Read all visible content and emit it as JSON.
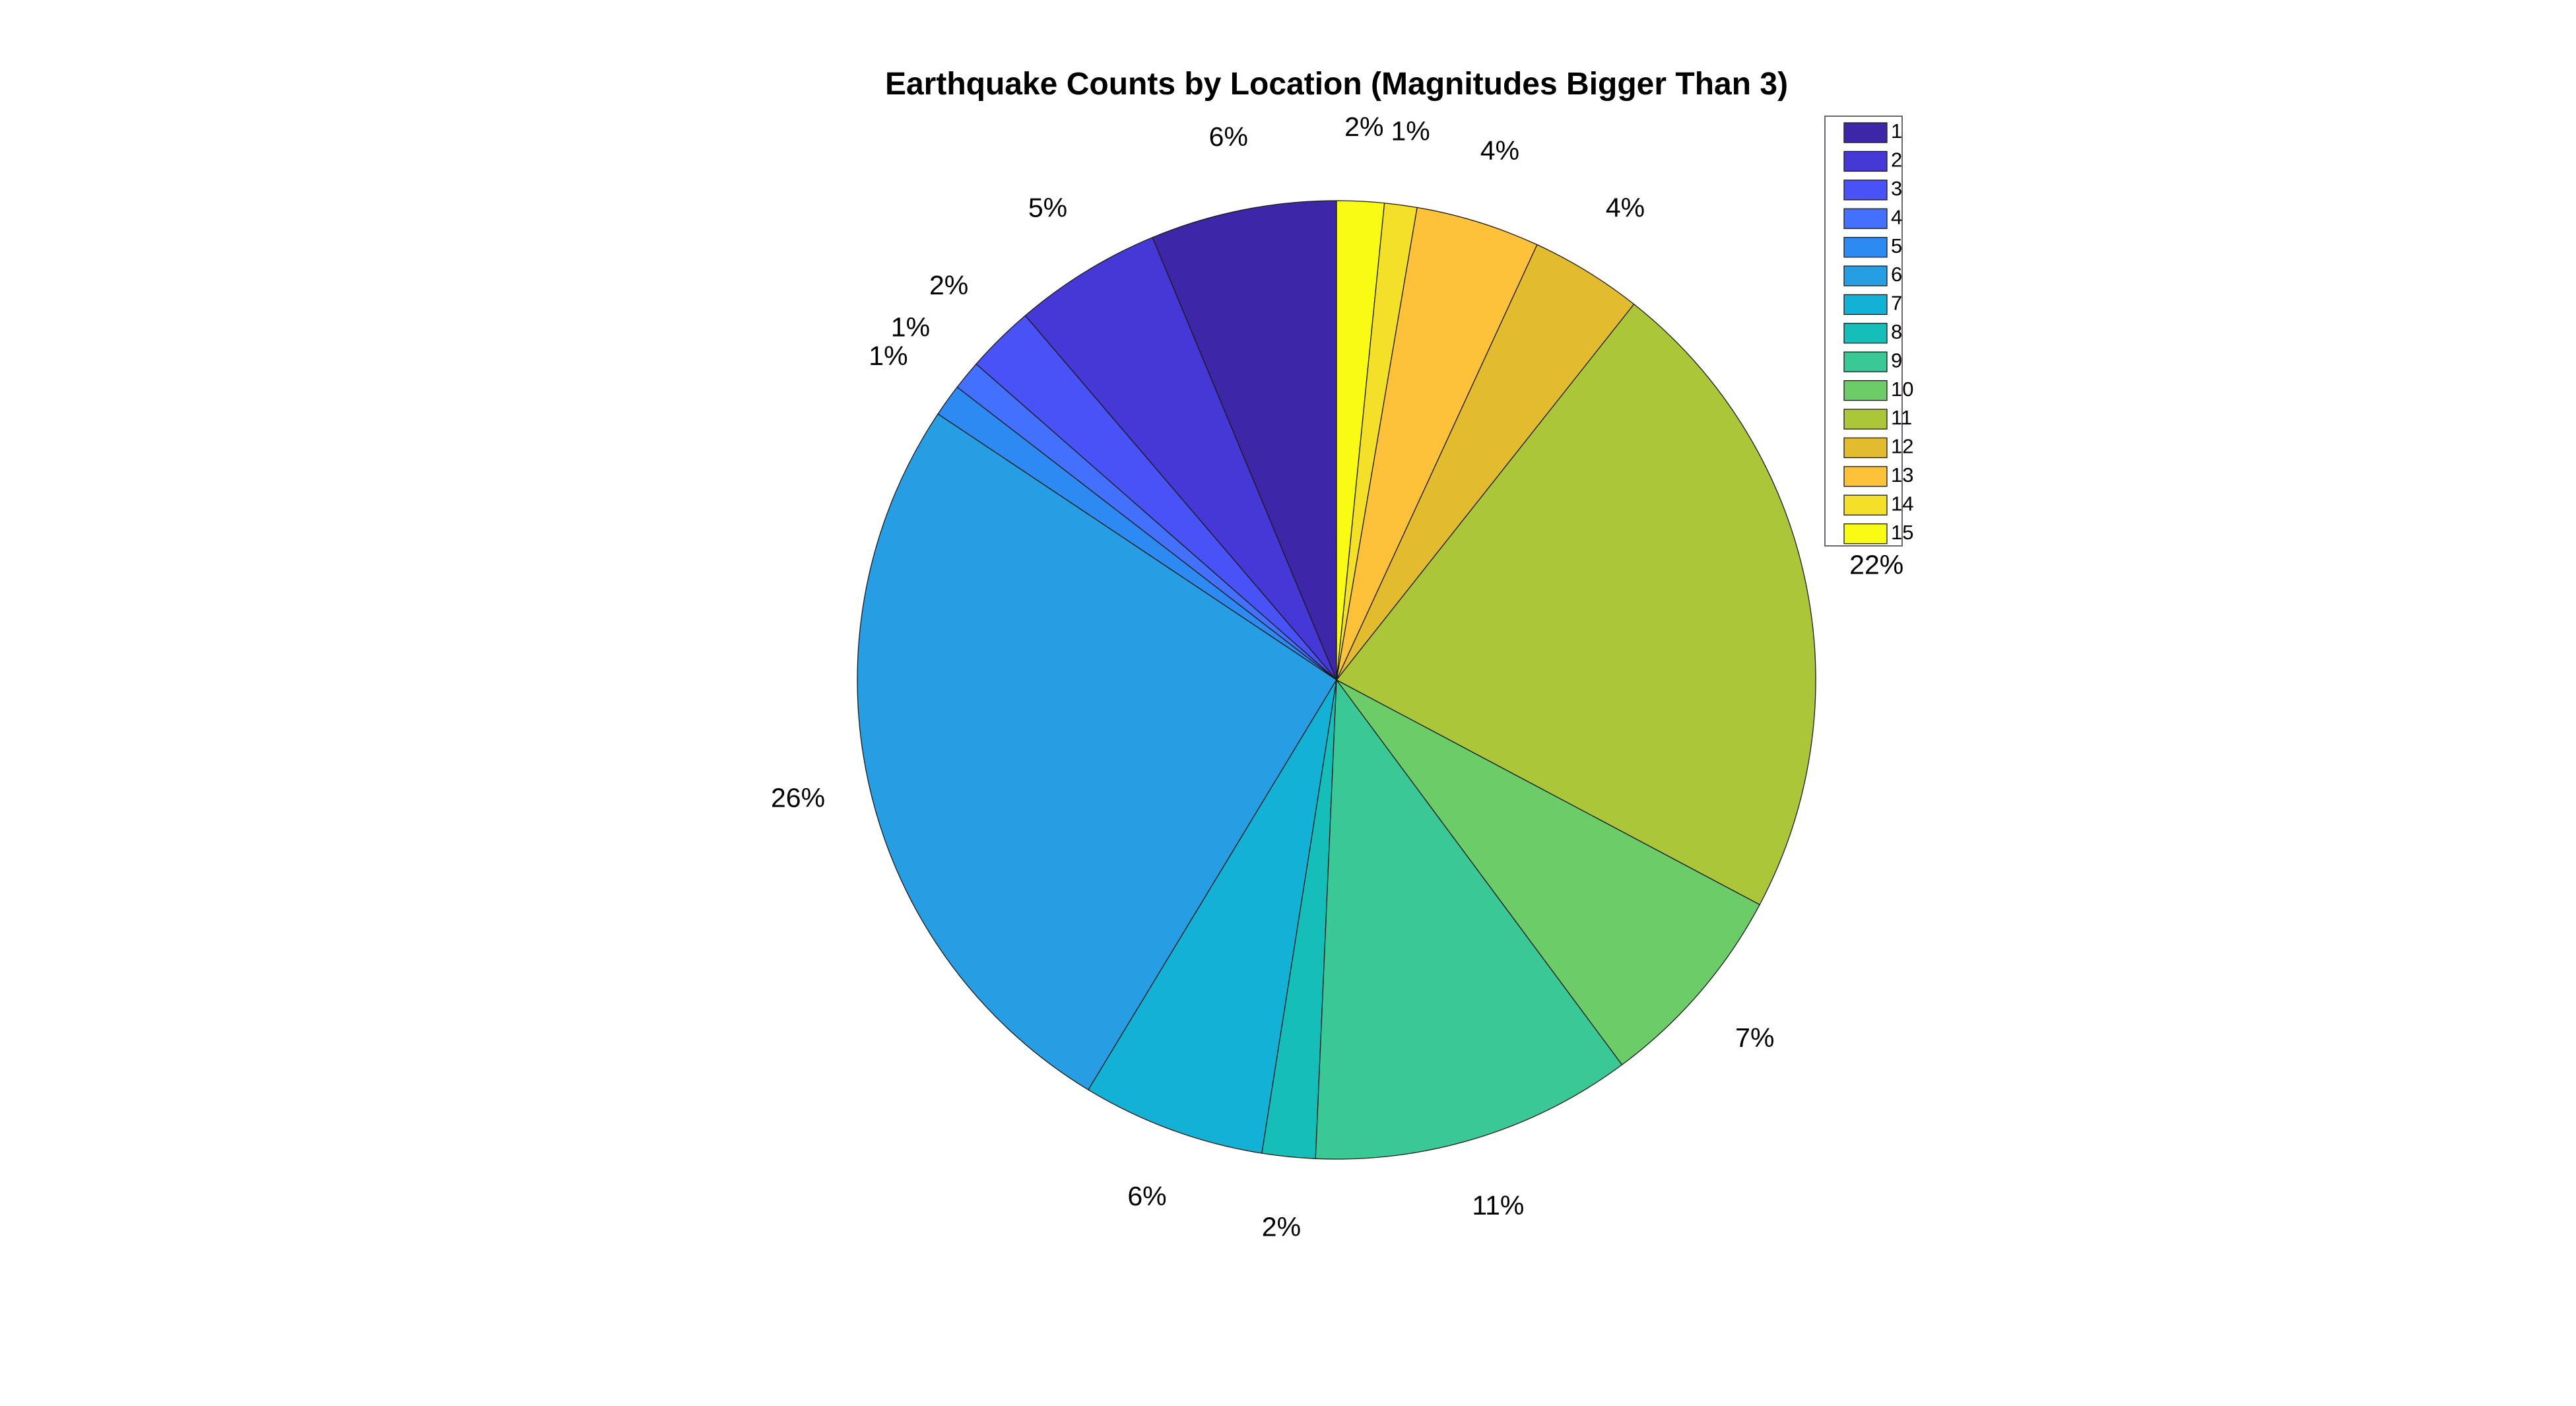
{
  "chart_data": {
    "type": "pie",
    "title": "Earthquake Counts by Location (Magnitudes Bigger Than 3)",
    "categories": [
      "1",
      "2",
      "3",
      "4",
      "5",
      "6",
      "7",
      "8",
      "9",
      "10",
      "11",
      "12",
      "13",
      "14",
      "15"
    ],
    "values": [
      6.3,
      5.0,
      2.3,
      1.0,
      1.1,
      25.8,
      6.2,
      1.8,
      10.9,
      7.1,
      22.2,
      3.8,
      4.2,
      1.1,
      1.6
    ],
    "labels": [
      "6%",
      "5%",
      "2%",
      "1%",
      "1%",
      "26%",
      "6%",
      "2%",
      "11%",
      "7%",
      "22%",
      "4%",
      "4%",
      "1%",
      "2%"
    ],
    "colors": [
      "#3D26A8",
      "#4538D6",
      "#4852F6",
      "#4370FE",
      "#2D8AF2",
      "#279DE3",
      "#13B1D6",
      "#16BEB9",
      "#3BC897",
      "#6BCC68",
      "#ABC739",
      "#E3BB2F",
      "#FDC13A",
      "#F4DF29",
      "#F9FB15"
    ],
    "legend": {
      "position": "top-right",
      "entries": [
        "1",
        "2",
        "3",
        "4",
        "5",
        "6",
        "7",
        "8",
        "9",
        "10",
        "11",
        "12",
        "13",
        "14",
        "15"
      ]
    }
  }
}
